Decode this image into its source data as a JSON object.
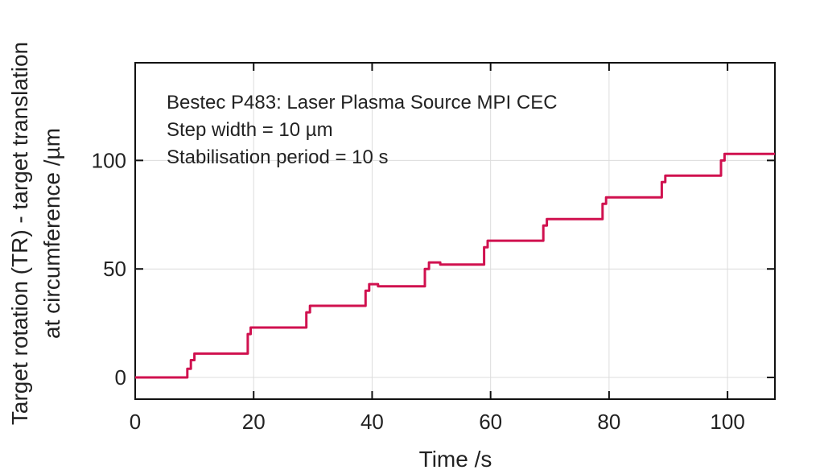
{
  "chart_data": {
    "type": "line",
    "title": "",
    "xlabel": "Time /s",
    "ylabel_line1": "Target rotation (TR) - target translation",
    "ylabel_line2": "at circumference /µm",
    "xlim": [
      0,
      108
    ],
    "ylim": [
      -10,
      145
    ],
    "xticks": [
      0,
      20,
      40,
      60,
      80,
      100
    ],
    "yticks": [
      0,
      50,
      100
    ],
    "grid": true,
    "line_color": "#d0114f",
    "annotations": [
      "Bestec P483: Laser Plasma Source MPI CEC",
      "Step width = 10 µm",
      "Stabilisation period = 10 s"
    ],
    "series": [
      {
        "x": [
          0,
          8.8,
          8.8,
          9.4,
          9.4,
          10.0,
          10.0,
          19.0,
          19.0,
          19.5,
          19.5,
          28.9,
          28.9,
          29.5,
          29.5,
          38.9,
          38.9,
          39.5,
          39.5,
          41.0,
          41.0,
          48.9,
          48.9,
          49.6,
          49.6,
          51.5,
          51.5,
          58.9,
          58.9,
          59.5,
          59.5,
          68.9,
          68.9,
          69.5,
          69.5,
          78.9,
          78.9,
          79.5,
          79.5,
          88.9,
          88.9,
          89.5,
          89.5,
          98.9,
          98.9,
          99.5,
          99.5,
          108
        ],
        "y": [
          0,
          0,
          4,
          4,
          8,
          8,
          11,
          11,
          20,
          20,
          23,
          23,
          30,
          30,
          33,
          33,
          40,
          40,
          43,
          43,
          42,
          42,
          50,
          50,
          53,
          53,
          52,
          52,
          60,
          60,
          63,
          63,
          70,
          70,
          73,
          73,
          80,
          80,
          83,
          83,
          90,
          90,
          93,
          93,
          100,
          100,
          103,
          103
        ]
      }
    ]
  }
}
